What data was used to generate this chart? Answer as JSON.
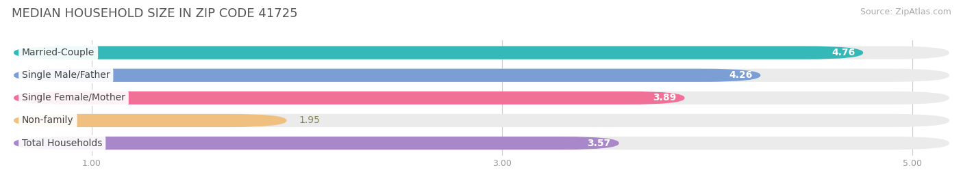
{
  "title": "MEDIAN HOUSEHOLD SIZE IN ZIP CODE 41725",
  "source": "Source: ZipAtlas.com",
  "categories": [
    "Married-Couple",
    "Single Male/Father",
    "Single Female/Mother",
    "Non-family",
    "Total Households"
  ],
  "values": [
    4.76,
    4.26,
    3.89,
    1.95,
    3.57
  ],
  "bar_colors": [
    "#35b8b8",
    "#7b9fd4",
    "#f07098",
    "#f0c080",
    "#a888c8"
  ],
  "bar_bg_color": "#ebebeb",
  "value_label_colors": [
    "white",
    "white",
    "white",
    "#c08030",
    "white"
  ],
  "xlim_min": 0.62,
  "xlim_max": 5.18,
  "xticks": [
    1.0,
    3.0,
    5.0
  ],
  "background_color": "#ffffff",
  "title_fontsize": 13,
  "source_fontsize": 9,
  "label_fontsize": 10,
  "value_fontsize": 10,
  "bar_height": 0.58,
  "bar_gap": 0.42
}
